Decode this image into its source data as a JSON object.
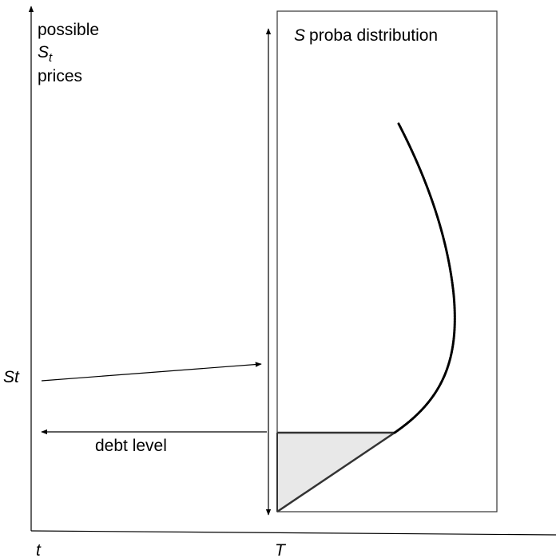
{
  "labels": {
    "possible": "possible",
    "s_letter": "S",
    "s_sub": "t",
    "prices": "prices",
    "dist_s": "S",
    "dist_title": "proba distribution",
    "st_left": "St",
    "debt_level": "debt level",
    "x_t": "t",
    "x_T": "T"
  },
  "colors": {
    "ink": "#000000",
    "shade": "#e8e8e8",
    "box_stroke": "#333333"
  }
}
